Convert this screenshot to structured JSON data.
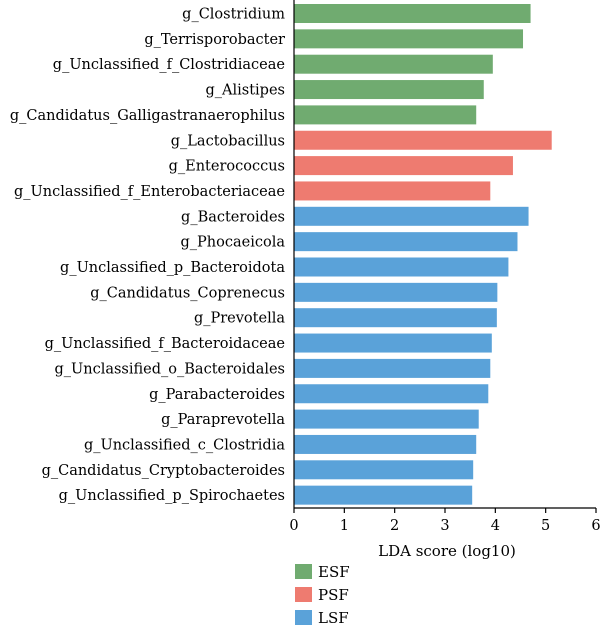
{
  "chart_data": {
    "type": "bar",
    "orientation": "horizontal",
    "title": "",
    "xlabel": "LDA score (log10)",
    "ylabel": "",
    "xlim": [
      0,
      6
    ],
    "xticks": [
      "0",
      "1",
      "2",
      "3",
      "4",
      "5",
      "6"
    ],
    "grid": false,
    "legend_position": "bottom-center",
    "legend": [
      {
        "name": "ESF",
        "color": "#70ab70"
      },
      {
        "name": "PSF",
        "color": "#ee7b70"
      },
      {
        "name": "LSF",
        "color": "#5aa2d9"
      }
    ],
    "categories": [
      "g_Clostridium",
      "g_Terrisporobacter",
      "g_Unclassified_f_Clostridiaceae",
      "g_Alistipes",
      "g_Candidatus_Galligastranaerophilus",
      "g_Lactobacillus",
      "g_Enterococcus",
      "g_Unclassified_f_Enterobacteriaceae",
      "g_Bacteroides",
      "g_Phocaeicola",
      "g_Unclassified_p_Bacteroidota",
      "g_Candidatus_Coprenecus",
      "g_Prevotella",
      "g_Unclassified_f_Bacteroidaceae",
      "g_Unclassified_o_Bacteroidales",
      "g_Parabacteroides",
      "g_Paraprevotella",
      "g_Unclassified_c_Clostridia",
      "g_Candidatus_Cryptobacteroides",
      "g_Unclassified_p_Spirochaetes"
    ],
    "values": [
      4.7,
      4.55,
      3.95,
      3.77,
      3.62,
      5.12,
      4.35,
      3.9,
      4.66,
      4.44,
      4.26,
      4.04,
      4.03,
      3.93,
      3.9,
      3.86,
      3.67,
      3.62,
      3.56,
      3.54
    ],
    "groups": [
      "ESF",
      "ESF",
      "ESF",
      "ESF",
      "ESF",
      "PSF",
      "PSF",
      "PSF",
      "LSF",
      "LSF",
      "LSF",
      "LSF",
      "LSF",
      "LSF",
      "LSF",
      "LSF",
      "LSF",
      "LSF",
      "LSF",
      "LSF"
    ]
  }
}
